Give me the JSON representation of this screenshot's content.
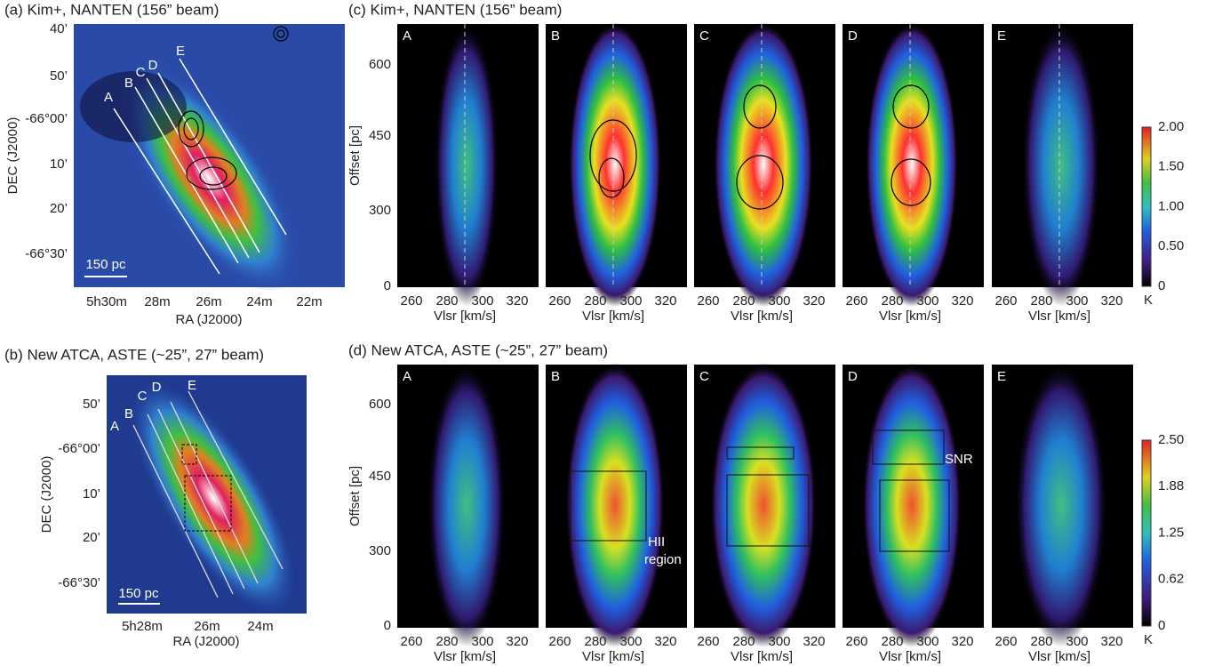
{
  "panel_a": {
    "title": "(a) Kim+, NANTEN (156” beam)",
    "y_label": "DEC (J2000)",
    "x_label": "RA (J2000)",
    "yticks": [
      "40’",
      "50’",
      "-66°00’",
      "10’",
      "20’",
      "-66°30’"
    ],
    "xticks": [
      "5h30m",
      "28m",
      "26m",
      "24m",
      "22m"
    ],
    "scale_bar": "150 pc",
    "cuts": [
      "A",
      "B",
      "C",
      "D",
      "E"
    ]
  },
  "panel_b": {
    "title": "(b) New ATCA, ASTE (~25”, 27” beam)",
    "y_label": "DEC (J2000)",
    "x_label": "RA (J2000)",
    "yticks": [
      "50’",
      "-66°00’",
      "10’",
      "20’",
      "-66°30’"
    ],
    "xticks": [
      "5h28m",
      "26m",
      "24m"
    ],
    "scale_bar": "150 pc",
    "cuts": [
      "A",
      "B",
      "C",
      "D",
      "E"
    ]
  },
  "panel_c": {
    "title": "(c) Kim+, NANTEN (156” beam)",
    "cuts": [
      "A",
      "B",
      "C",
      "D",
      "E"
    ],
    "y_label": "Offset [pc]",
    "yticks": [
      "600",
      "450",
      "300",
      "0"
    ],
    "xticks": [
      "260",
      "280",
      "300",
      "320"
    ],
    "x_label": "Vlsr [km/s]",
    "colorbar_ticks": [
      "2.00",
      "1.50",
      "1.00",
      "0.50",
      "0"
    ],
    "colorbar_unit": "K"
  },
  "panel_d": {
    "title": "(d) New ATCA, ASTE (~25”, 27” beam)",
    "cuts": [
      "A",
      "B",
      "C",
      "D",
      "E"
    ],
    "y_label": "Offset [pc]",
    "yticks": [
      "600",
      "450",
      "300",
      "0"
    ],
    "xticks": [
      "260",
      "280",
      "300",
      "320"
    ],
    "x_label": "Vlsr [km/s]",
    "colorbar_ticks": [
      "2.50",
      "1.88",
      "1.25",
      "0.62",
      "0"
    ],
    "colorbar_unit": "K",
    "annotations": {
      "hii": [
        "HII",
        "region"
      ],
      "snr": "SNR"
    }
  }
}
